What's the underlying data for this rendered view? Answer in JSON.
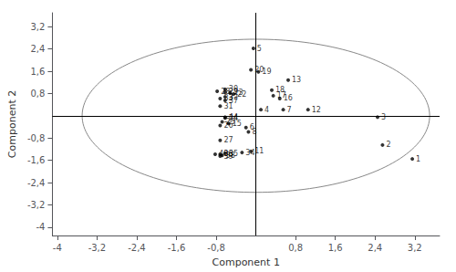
{
  "chart_data": {
    "type": "scatter",
    "xlabel": "Component 1",
    "ylabel": "Component 2",
    "labels": [
      "1",
      "2",
      "3",
      "4",
      "5",
      "6",
      "7",
      "8",
      "11",
      "12",
      "13",
      "15",
      "16",
      "17",
      "18",
      "19",
      "20",
      "22",
      "23",
      "24",
      "25",
      "26",
      "27",
      "28",
      "29",
      "30",
      "31",
      "32",
      "33",
      "34",
      "35",
      "36",
      "37",
      "38",
      "39",
      "40",
      "44"
    ],
    "x": [
      3.15,
      2.55,
      2.45,
      0.1,
      -0.05,
      -0.2,
      0.55,
      -0.15,
      -0.1,
      1.05,
      0.65,
      -0.55,
      0.48,
      0.35,
      0.32,
      0.05,
      -0.1,
      -0.45,
      -0.52,
      -0.62,
      -0.68,
      -0.72,
      -0.72,
      -0.78,
      -0.62,
      -0.62,
      -0.72,
      -0.62,
      -0.72,
      -0.28,
      -0.62,
      -0.72,
      -0.62,
      -0.68,
      -0.72,
      -0.82,
      -0.62
    ],
    "values": [
      -1.55,
      -1.05,
      -0.05,
      0.22,
      2.42,
      -0.42,
      0.22,
      -0.58,
      -1.28,
      0.22,
      1.28,
      -0.28,
      0.62,
      0.72,
      0.92,
      1.58,
      1.65,
      0.78,
      0.82,
      -0.08,
      -0.22,
      -0.35,
      -0.88,
      0.88,
      0.85,
      0.95,
      0.35,
      0.68,
      0.62,
      -1.32,
      -1.35,
      -1.38,
      0.55,
      -1.42,
      -1.45,
      -1.38,
      -0.05
    ],
    "color": "black",
    "ellipse": {
      "center": [
        0.0,
        0.0
      ],
      "width": 7.0,
      "height": 5.5,
      "angle": 0,
      "color": "#888888"
    },
    "xlim": [
      -4.1,
      3.7
    ],
    "ylim": [
      -4.3,
      3.7
    ],
    "xticks": [
      -4,
      {
        "value": -3.2,
        "label": "-3,2"
      },
      {
        "value": -2.4,
        "label": "-2,4"
      },
      {
        "value": -1.6,
        "label": "-1,6"
      },
      {
        "value": -0.8,
        "label": "-0,8"
      },
      {
        "value": 0.8,
        "label": "0,8"
      },
      {
        "value": 1.6,
        "label": "1,6"
      },
      {
        "value": 2.4,
        "label": "2,4"
      },
      {
        "value": 3.2,
        "label": "3,2"
      }
    ],
    "yticks": [
      -4,
      {
        "value": -3.2,
        "label": "-3,2"
      },
      {
        "value": -2.4,
        "label": "-2,4"
      },
      {
        "value": -1.6,
        "label": "-1,6"
      },
      {
        "value": -0.8,
        "label": "-0,8"
      },
      {
        "value": 0.8,
        "label": "0,8"
      },
      {
        "value": 1.6,
        "label": "1,6"
      },
      {
        "value": 2.4,
        "label": "2,4"
      },
      {
        "value": 3.2,
        "label": "3,2"
      }
    ],
    "grid": false
  }
}
